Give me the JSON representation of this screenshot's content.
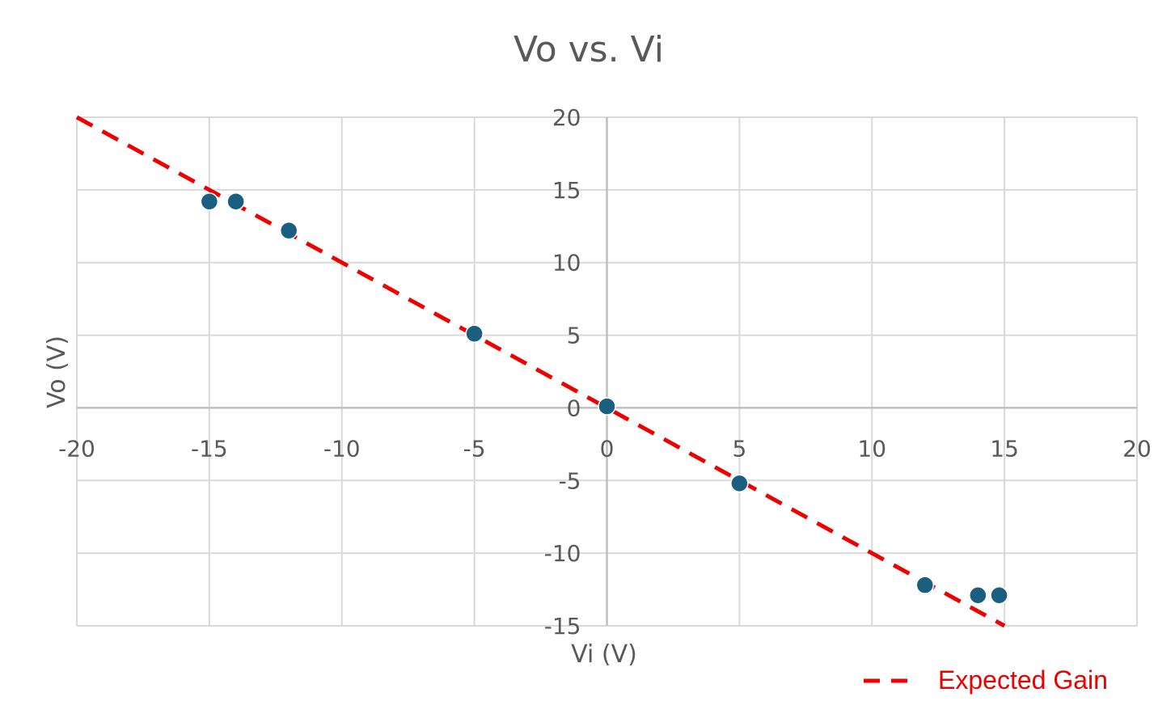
{
  "chart_data": {
    "type": "scatter",
    "title": "Vo vs. Vi",
    "xlabel": "Vi (V)",
    "ylabel": "Vo (V)",
    "xlim": [
      -20,
      20
    ],
    "ylim": [
      -15,
      20
    ],
    "x_ticks": [
      -20,
      -15,
      -10,
      -5,
      0,
      5,
      10,
      15,
      20
    ],
    "y_ticks": [
      -15,
      -10,
      -5,
      0,
      5,
      10,
      15,
      20
    ],
    "x_tick_labels": [
      "-20",
      "-15",
      "-10",
      "-5",
      "0",
      "5",
      "10",
      "15",
      "20"
    ],
    "y_tick_labels": [
      "-15",
      "-10",
      "-5",
      "0",
      "5",
      "10",
      "15",
      "20"
    ],
    "grid": true,
    "legend_position": "bottom-right",
    "series": [
      {
        "x": [
          -15,
          -14,
          -12,
          -5,
          0,
          5,
          12,
          14,
          14.8
        ],
        "y": [
          14.2,
          14.2,
          12.2,
          5.1,
          0.1,
          -5.2,
          -12.2,
          -12.9,
          -12.9
        ],
        "color": "#1a5e80",
        "style": "markers"
      },
      {
        "name": "Expected Gain",
        "x": [
          -20,
          15
        ],
        "y": [
          20,
          -15
        ],
        "color": "#ee0000",
        "style": "dashed-line"
      }
    ]
  }
}
